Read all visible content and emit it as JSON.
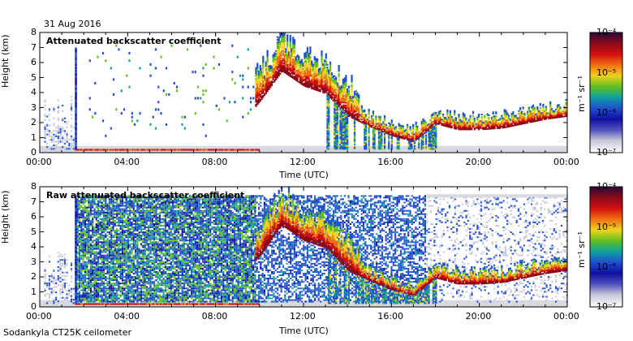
{
  "header": {
    "date": "31 Aug 2016"
  },
  "footer": {
    "instrument": "Sodankyla CT25K ceilometer"
  },
  "colorbar": {
    "unit_label": "m⁻¹ sr⁻¹",
    "tick_labels": [
      "10⁻⁴",
      "10⁻⁵",
      "10⁻⁶",
      "10⁻⁷"
    ],
    "stops": [
      "#2a0a3a",
      "#8a0a1a",
      "#d01010",
      "#f07010",
      "#f0d020",
      "#60c020",
      "#10a0a0",
      "#2050d0",
      "#1010a0",
      "#5050c0",
      "#c8c8d8",
      "#ffffff"
    ]
  },
  "chart_data": [
    {
      "type": "heatmap",
      "title": "Attenuated backscatter coefficient",
      "xlabel": "Time (UTC)",
      "ylabel": "Height (km)",
      "x_tick_labels": [
        "00:00",
        "04:00",
        "08:00",
        "12:00",
        "16:00",
        "20:00",
        "00:00"
      ],
      "y_tick_labels": [
        "0",
        "1",
        "2",
        "3",
        "4",
        "5",
        "6",
        "7",
        "8"
      ],
      "xlim_hours": [
        0,
        24
      ],
      "ylim_km": [
        0,
        8
      ],
      "zlim_log10": [
        -7,
        -4
      ],
      "cloud_base_km": [
        {
          "t": 0.0,
          "h": 0.25
        },
        {
          "t": 1.6,
          "h": 0.15
        },
        {
          "t": 4.0,
          "h": 0.15
        },
        {
          "t": 8.0,
          "h": 0.2
        },
        {
          "t": 10.0,
          "h": 3.5
        },
        {
          "t": 11.0,
          "h": 5.5
        },
        {
          "t": 12.0,
          "h": 4.5
        },
        {
          "t": 13.0,
          "h": 4.0
        },
        {
          "t": 14.0,
          "h": 2.5
        },
        {
          "t": 15.0,
          "h": 1.8
        },
        {
          "t": 16.0,
          "h": 1.2
        },
        {
          "t": 17.0,
          "h": 0.8
        },
        {
          "t": 18.0,
          "h": 2.0
        },
        {
          "t": 19.0,
          "h": 1.6
        },
        {
          "t": 20.0,
          "h": 1.6
        },
        {
          "t": 21.0,
          "h": 1.7
        },
        {
          "t": 22.0,
          "h": 2.0
        },
        {
          "t": 23.0,
          "h": 2.3
        },
        {
          "t": 24.0,
          "h": 2.5
        }
      ]
    },
    {
      "type": "heatmap",
      "title": "Raw attenuated backscatter coefficient",
      "xlabel": "Time (UTC)",
      "ylabel": "Height (km)",
      "x_tick_labels": [
        "00:00",
        "04:00",
        "08:00",
        "12:00",
        "16:00",
        "20:00",
        "00:00"
      ],
      "y_tick_labels": [
        "0",
        "1",
        "2",
        "3",
        "4",
        "5",
        "6",
        "7",
        "8"
      ],
      "xlim_hours": [
        0,
        24
      ],
      "ylim_km": [
        0,
        8
      ],
      "zlim_log10": [
        -7,
        -4
      ],
      "noise_top_km": 7.5
    }
  ]
}
